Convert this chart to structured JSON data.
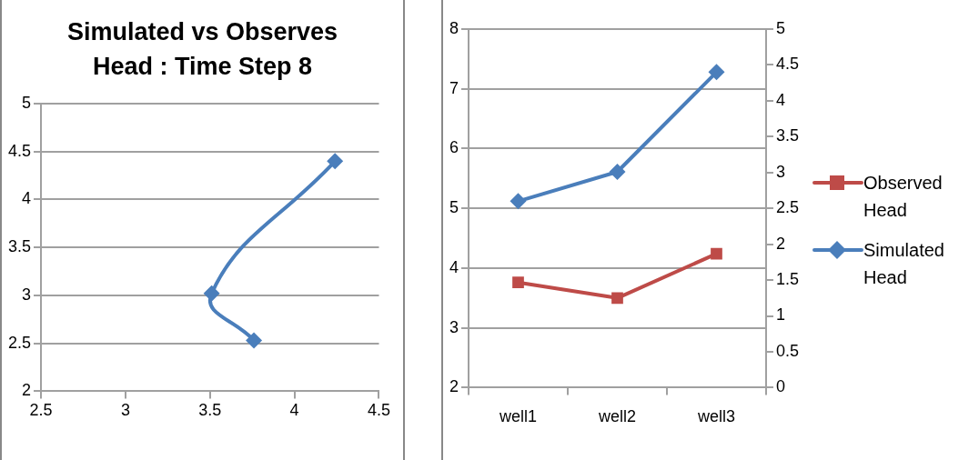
{
  "chart_data": [
    {
      "type": "line",
      "title": "Simulated vs Observes Head : Time Step 8",
      "x": [
        3.76,
        3.51,
        4.24
      ],
      "xlim": [
        2.5,
        4.5
      ],
      "xticks": [
        2.5,
        3,
        3.5,
        4,
        4.5
      ],
      "ylim": [
        2,
        5
      ],
      "yticks": [
        2,
        2.5,
        3,
        3.5,
        4,
        4.5,
        5
      ],
      "grid": "y",
      "series": [
        {
          "color": "#4a7ebb",
          "values": [
            2.53,
            3.02,
            4.4
          ],
          "marker": "diamond",
          "line_style": "solid"
        }
      ]
    },
    {
      "type": "line",
      "categories": [
        "well1",
        "well2",
        "well3"
      ],
      "ylim": [
        2,
        8
      ],
      "yticks": [
        2,
        3,
        4,
        5,
        6,
        7,
        8
      ],
      "y2lim": [
        0,
        5
      ],
      "y2ticks": [
        0,
        0.5,
        1,
        1.5,
        2,
        2.5,
        3,
        3.5,
        4,
        4.5,
        5
      ],
      "grid": "y",
      "legend": "right",
      "series": [
        {
          "name": "Observed Head",
          "color": "#be4b48",
          "values": [
            3.76,
            3.5,
            4.24
          ],
          "marker": "square"
        },
        {
          "name": "Simulated Head",
          "color": "#4a7ebb",
          "values": [
            2.6,
            3.01,
            4.4
          ],
          "marker": "diamond",
          "axis": "y2"
        }
      ]
    }
  ]
}
